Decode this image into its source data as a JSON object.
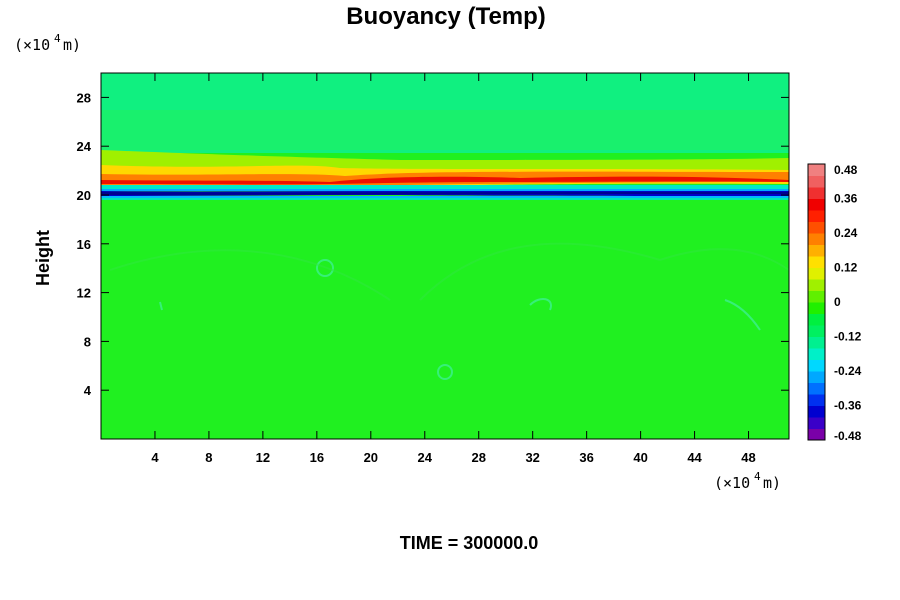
{
  "chart_data": {
    "type": "heatmap",
    "title": "Buoyancy (Temp)",
    "ylabel": "Height",
    "xlabel": "",
    "x_unit": {
      "prefix": "(×10",
      "exponent": "4",
      "suffix": " m)"
    },
    "y_unit": {
      "prefix": "(×10",
      "exponent": "4",
      "suffix": " m)"
    },
    "footer": "TIME = 300000.0",
    "xlim": [
      0,
      51
    ],
    "ylim": [
      0,
      30
    ],
    "x_ticks": [
      4,
      8,
      12,
      16,
      20,
      24,
      28,
      32,
      36,
      40,
      44,
      48
    ],
    "y_ticks": [
      4,
      8,
      12,
      16,
      20,
      24,
      28
    ],
    "colorbar": {
      "range": [
        -0.48,
        0.48
      ],
      "tick_labels": [
        "0.48",
        "0.36",
        "0.24",
        "0.12",
        "0",
        "-0.12",
        "-0.24",
        "-0.36",
        "-0.48"
      ],
      "tick_values": [
        0.48,
        0.36,
        0.24,
        0.12,
        0,
        -0.12,
        -0.24,
        -0.36,
        -0.48
      ],
      "colors_bottom_to_top": [
        "#7a00a8",
        "#3a00c8",
        "#0000d0",
        "#0030f0",
        "#0070ff",
        "#00a8ff",
        "#00d8ff",
        "#00f0c8",
        "#00f090",
        "#00f060",
        "#00f040",
        "#20f000",
        "#60f000",
        "#a0f000",
        "#e0f000",
        "#ffe000",
        "#ffb000",
        "#ff8000",
        "#ff5000",
        "#ff2000",
        "#f00000",
        "#f03030",
        "#f06060",
        "#f08080"
      ]
    },
    "field_description_layers": [
      {
        "y_range": [
          0,
          19.9
        ],
        "value": 0.0
      },
      {
        "y_range": [
          20.0,
          20.3
        ],
        "value": -0.42
      },
      {
        "y_range": [
          20.3,
          20.6
        ],
        "value": -0.2
      },
      {
        "y_range": [
          20.6,
          21.0
        ],
        "value": 0.12
      },
      {
        "y_range": [
          21.0,
          21.6
        ],
        "value": 0.36
      },
      {
        "y_range": [
          21.6,
          22.2
        ],
        "value": 0.24
      },
      {
        "y_range": [
          22.2,
          23.0
        ],
        "value": 0.08
      },
      {
        "y_range": [
          23.0,
          30.0
        ],
        "value": -0.04
      }
    ]
  }
}
